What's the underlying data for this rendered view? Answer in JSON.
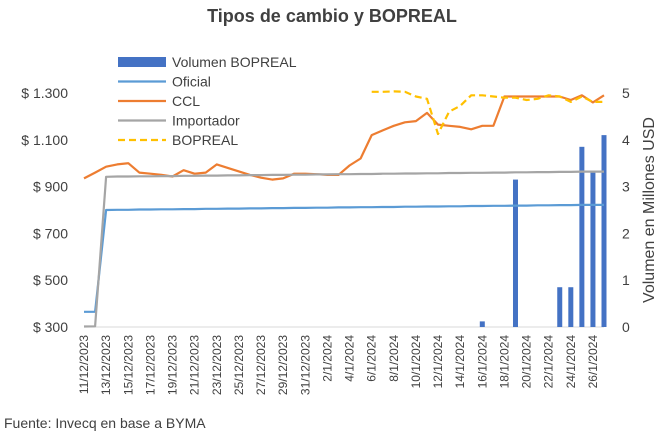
{
  "chart_data": {
    "type": "line",
    "title": "Tipos de cambio y BOPREAL",
    "source": "Fuente: Invecq en base a BYMA",
    "y2label": "Volumen en Millones USD",
    "ylim": [
      300,
      1300
    ],
    "y2lim": [
      0,
      5
    ],
    "yticks": [
      "$ 300",
      "$ 500",
      "$ 700",
      "$ 900",
      "$ 1.100",
      "$ 1.300"
    ],
    "y2ticks": [
      "0",
      "1",
      "2",
      "3",
      "4",
      "5"
    ],
    "xtick_labels": [
      "11/12/2023",
      "13/12/2023",
      "15/12/2023",
      "17/12/2023",
      "19/12/2023",
      "21/12/2023",
      "23/12/2023",
      "25/12/2023",
      "27/12/2023",
      "29/12/2023",
      "31/12/2023",
      "2/1/2024",
      "4/1/2024",
      "6/1/2024",
      "8/1/2024",
      "10/1/2024",
      "12/1/2024",
      "14/1/2024",
      "16/1/2024",
      "18/1/2024",
      "20/1/2024",
      "22/1/2024",
      "24/1/2024",
      "26/1/2024"
    ],
    "x": [
      "11/12/2023",
      "12/12/2023",
      "13/12/2023",
      "14/12/2023",
      "15/12/2023",
      "16/12/2023",
      "17/12/2023",
      "18/12/2023",
      "19/12/2023",
      "20/12/2023",
      "21/12/2023",
      "22/12/2023",
      "23/12/2023",
      "24/12/2023",
      "25/12/2023",
      "26/12/2023",
      "27/12/2023",
      "28/12/2023",
      "29/12/2023",
      "30/12/2023",
      "31/12/2023",
      "1/1/2024",
      "2/1/2024",
      "3/1/2024",
      "4/1/2024",
      "5/1/2024",
      "6/1/2024",
      "7/1/2024",
      "8/1/2024",
      "9/1/2024",
      "10/1/2024",
      "11/1/2024",
      "12/1/2024",
      "13/1/2024",
      "14/1/2024",
      "15/1/2024",
      "16/1/2024",
      "17/1/2024",
      "18/1/2024",
      "19/1/2024",
      "20/1/2024",
      "21/1/2024",
      "22/1/2024",
      "23/1/2024",
      "24/1/2024",
      "25/1/2024",
      "26/1/2024",
      "27/1/2024"
    ],
    "series": [
      {
        "name": "Volumen BOPREAL",
        "type": "bar",
        "axis": "right",
        "color": "#4472C4",
        "values": [
          null,
          null,
          null,
          null,
          null,
          null,
          null,
          null,
          null,
          null,
          null,
          null,
          null,
          null,
          null,
          null,
          null,
          null,
          null,
          null,
          null,
          null,
          null,
          null,
          null,
          null,
          null,
          null,
          null,
          null,
          null,
          null,
          null,
          null,
          null,
          null,
          0.12,
          null,
          null,
          3.15,
          null,
          null,
          null,
          0.85,
          0.85,
          3.85,
          3.3,
          4.1
        ]
      },
      {
        "name": "Oficial",
        "type": "line",
        "axis": "left",
        "color": "#5B9BD5",
        "values": [
          365,
          365,
          800,
          801,
          801,
          802,
          802,
          803,
          803,
          804,
          804,
          805,
          805,
          806,
          806,
          807,
          807,
          808,
          808,
          809,
          809,
          810,
          810,
          811,
          811,
          812,
          812,
          813,
          813,
          814,
          814,
          815,
          815,
          816,
          816,
          817,
          817,
          818,
          818,
          819,
          819,
          820,
          820,
          821,
          821,
          822,
          822,
          822
        ]
      },
      {
        "name": "CCL",
        "type": "line",
        "axis": "left",
        "color": "#ED7D31",
        "values": [
          935,
          960,
          985,
          995,
          1000,
          960,
          955,
          950,
          943,
          970,
          955,
          960,
          995,
          980,
          965,
          950,
          938,
          930,
          935,
          955,
          955,
          953,
          950,
          950,
          990,
          1020,
          1120,
          1140,
          1160,
          1175,
          1180,
          1215,
          1165,
          1160,
          1155,
          1145,
          1160,
          1160,
          1285,
          1285,
          1285,
          1285,
          1285,
          1285,
          1270,
          1290,
          1260,
          1290
        ]
      },
      {
        "name": "Importador",
        "type": "line",
        "axis": "left",
        "color": "#A5A5A5",
        "values": [
          302,
          303,
          942,
          943,
          943,
          944,
          944,
          945,
          945,
          946,
          946,
          947,
          947,
          948,
          948,
          949,
          949,
          950,
          950,
          951,
          951,
          952,
          952,
          953,
          953,
          954,
          954,
          955,
          955,
          956,
          956,
          957,
          957,
          958,
          958,
          959,
          959,
          960,
          960,
          961,
          961,
          962,
          962,
          963,
          963,
          964,
          964,
          964
        ]
      },
      {
        "name": "BOPREAL",
        "type": "line",
        "axis": "left",
        "color": "#FFC000",
        "dash": true,
        "values": [
          null,
          null,
          null,
          null,
          null,
          null,
          null,
          null,
          null,
          null,
          null,
          null,
          null,
          null,
          null,
          null,
          null,
          null,
          null,
          null,
          null,
          null,
          null,
          null,
          null,
          null,
          1305,
          1305,
          1307,
          1305,
          1285,
          1275,
          1125,
          1220,
          1245,
          1290,
          1290,
          1285,
          1280,
          1280,
          1270,
          1275,
          1290,
          1285,
          1262,
          1285,
          1262,
          1262
        ]
      }
    ]
  }
}
